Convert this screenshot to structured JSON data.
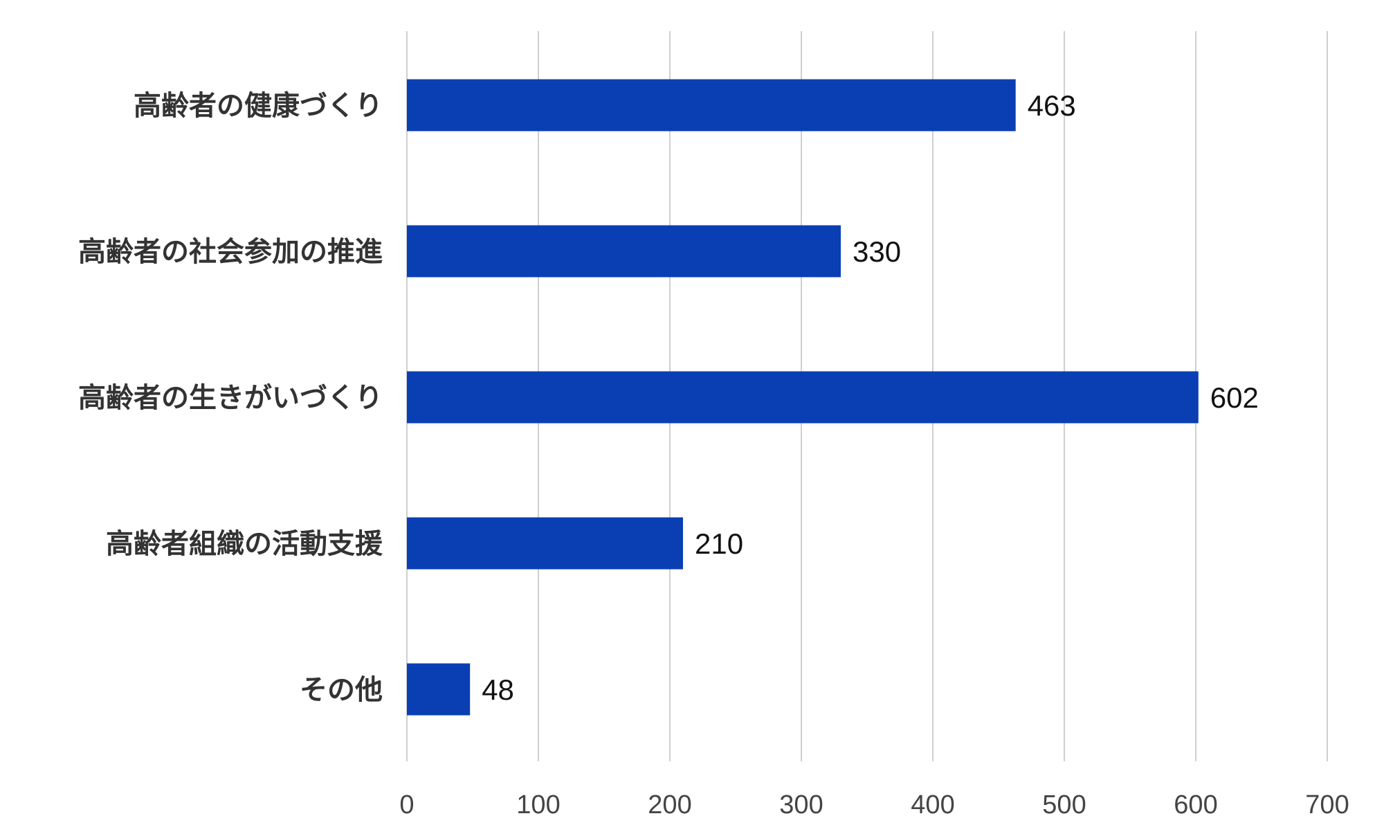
{
  "chart_data": {
    "type": "bar",
    "orientation": "horizontal",
    "categories": [
      "高齢者の健康づくり",
      "高齢者の社会参加の推進",
      "高齢者の生きがいづくり",
      "高齢者組織の活動支援",
      "その他"
    ],
    "values": [
      463,
      330,
      602,
      210,
      48
    ],
    "xlim": [
      0,
      700
    ],
    "xticks": [
      "0",
      "100",
      "200",
      "300",
      "400",
      "500",
      "600",
      "700"
    ],
    "xtick_values": [
      0,
      100,
      200,
      300,
      400,
      500,
      600,
      700
    ],
    "title": "",
    "xlabel": "",
    "ylabel": "",
    "grid": true,
    "data_labels": true,
    "legend": "none",
    "bar_color": "#0a3fb4"
  }
}
